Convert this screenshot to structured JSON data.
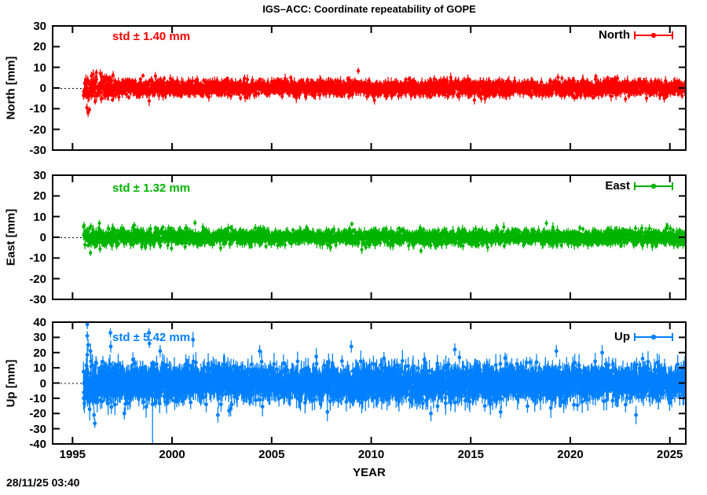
{
  "figure": {
    "timestamp": "28/11/25 03:40"
  },
  "chart_data": {
    "type": "scatter",
    "title": "IGS–ACC: Coordinate repeatability of GOPE",
    "xlabel": "YEAR",
    "background": "#ffffff",
    "axis_color": "#000000",
    "x_range": [
      1994.0,
      2025.8
    ],
    "x_ticks": [
      "1995",
      "2000",
      "2005",
      "2010",
      "2015",
      "2020",
      "2025"
    ],
    "x_tick_values": [
      1995,
      2000,
      2005,
      2010,
      2015,
      2020,
      2025
    ],
    "grid": false,
    "legend_position": "top-right-inside",
    "panels": [
      {
        "name": "North",
        "ylabel": "North [mm]",
        "legend": "North",
        "std_label": "std ± 1.40 mm",
        "std_mm": 1.4,
        "color": "#ff0000",
        "ylim": [
          -30,
          30
        ],
        "y_ticks": [
          "30",
          "20",
          "10",
          "0",
          "-10",
          "-20",
          "-30"
        ],
        "y_tick_values": [
          30,
          20,
          10,
          0,
          -10,
          -20,
          -30
        ],
        "zero_line_dotted": true,
        "scatter": {
          "seed": 11,
          "start": 1995.55,
          "end": 2025.85,
          "points_per_year": 90,
          "sigma": 1.8,
          "sigma_early": 3.2,
          "early_until": 1997.5,
          "clamp": 7,
          "err_base": 1.0,
          "err_rand": 1.6,
          "spike_prob": 0.004,
          "spike_mult": 1.6,
          "marker_r": 2.1
        },
        "spikes": [
          {
            "t": 1995.72,
            "y": -9.5,
            "e": 2.0
          },
          {
            "t": 1995.78,
            "y": -12.0,
            "e": 2.0
          },
          {
            "t": 1995.85,
            "y": -10.5,
            "e": 1.5
          },
          {
            "t": 1996.2,
            "y": 7.5,
            "e": 1.5
          },
          {
            "t": 2009.35,
            "y": 8.3,
            "e": 1.5
          }
        ]
      },
      {
        "name": "East",
        "ylabel": "East [mm]",
        "legend": "East",
        "std_label": "std ± 1.32 mm",
        "std_mm": 1.32,
        "color": "#00b400",
        "ylim": [
          -30,
          30
        ],
        "y_ticks": [
          "30",
          "20",
          "10",
          "0",
          "-10",
          "-20",
          "-30"
        ],
        "y_tick_values": [
          30,
          20,
          10,
          0,
          -10,
          -20,
          -30
        ],
        "zero_line_dotted": true,
        "scatter": {
          "seed": 23,
          "start": 1995.55,
          "end": 2025.85,
          "points_per_year": 90,
          "sigma": 1.7,
          "sigma_early": 2.6,
          "early_until": 1997.5,
          "clamp": 7,
          "err_base": 1.0,
          "err_rand": 1.5,
          "spike_prob": 0.004,
          "spike_mult": 1.6,
          "marker_r": 2.1
        },
        "spikes": [
          {
            "t": 1995.9,
            "y": -7.5,
            "e": 1.5
          },
          {
            "t": 1996.35,
            "y": 6.8,
            "e": 1.5
          },
          {
            "t": 2001.15,
            "y": 7.0,
            "e": 1.5
          },
          {
            "t": 2012.5,
            "y": -6.5,
            "e": 1.5
          },
          {
            "t": 2018.8,
            "y": 6.8,
            "e": 1.5
          }
        ]
      },
      {
        "name": "Up",
        "ylabel": "Up [mm]",
        "legend": "Up",
        "std_label": "std ± 5.42 mm",
        "std_mm": 5.42,
        "color": "#0080ff",
        "ylim": [
          -40,
          40
        ],
        "y_ticks": [
          "40",
          "30",
          "20",
          "10",
          "0",
          "-10",
          "-20",
          "-30",
          "-40"
        ],
        "y_tick_values": [
          40,
          30,
          20,
          10,
          0,
          -10,
          -20,
          -30,
          -40
        ],
        "zero_line_dotted": true,
        "scatter": {
          "seed": 37,
          "start": 1995.55,
          "end": 2025.85,
          "points_per_year": 110,
          "sigma": 5.4,
          "sigma_early": 6.5,
          "early_until": 1998.0,
          "clamp": 22,
          "err_base": 3.5,
          "err_rand": 4.0,
          "spike_prob": 0.02,
          "spike_mult": 1.5,
          "marker_r": 2.4
        },
        "spikes": [
          {
            "t": 1995.74,
            "y": 38.5,
            "e": 3.0
          },
          {
            "t": 1995.74,
            "y": 31.0,
            "e": 3.0
          },
          {
            "t": 1995.78,
            "y": 25.0,
            "e": 4.0
          },
          {
            "t": 1995.9,
            "y": 21.0,
            "e": 5.0
          },
          {
            "t": 1996.08,
            "y": -21.0,
            "e": 3.0
          },
          {
            "t": 1996.12,
            "y": -26.5,
            "e": 3.0
          },
          {
            "t": 1996.9,
            "y": 33.0,
            "e": 3.0
          },
          {
            "t": 1996.92,
            "y": 24.0,
            "e": 4.0
          },
          {
            "t": 1997.6,
            "y": -20.0,
            "e": 4.0
          },
          {
            "t": 1998.84,
            "y": 33.0,
            "e": 3.0
          },
          {
            "t": 1998.86,
            "y": 26.0,
            "e": 3.0
          },
          {
            "t": 1999.02,
            "y": -14.0,
            "e": 29.0
          },
          {
            "t": 1999.4,
            "y": 21.0,
            "e": 4.0
          },
          {
            "t": 2001.05,
            "y": 28.5,
            "e": 5.0
          },
          {
            "t": 2002.3,
            "y": -21.0,
            "e": 5.0
          },
          {
            "t": 2004.4,
            "y": 21.0,
            "e": 4.0
          },
          {
            "t": 2007.8,
            "y": -19.0,
            "e": 6.0
          },
          {
            "t": 2009.0,
            "y": 24.0,
            "e": 4.0
          },
          {
            "t": 2013.0,
            "y": -20.0,
            "e": 5.0
          },
          {
            "t": 2014.2,
            "y": 22.0,
            "e": 4.0
          },
          {
            "t": 2016.5,
            "y": -19.0,
            "e": 4.0
          },
          {
            "t": 2019.3,
            "y": 21.0,
            "e": 4.0
          },
          {
            "t": 2021.6,
            "y": 20.0,
            "e": 5.0
          },
          {
            "t": 2023.3,
            "y": -21.0,
            "e": 6.0
          }
        ]
      }
    ]
  }
}
